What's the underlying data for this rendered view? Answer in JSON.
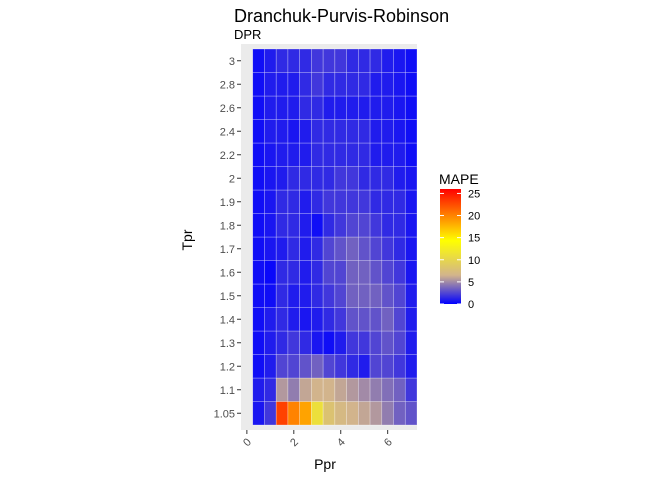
{
  "chart_data": {
    "type": "heatmap",
    "title": "Dranchuk-Purvis-Robinson",
    "subtitle": "DPR",
    "xlabel": "Ppr",
    "ylabel": "Tpr",
    "x_ticks": [
      "0",
      "2",
      "4",
      "6"
    ],
    "xlim": [
      -0.25,
      7.25
    ],
    "x_values": [
      0.5,
      1.0,
      1.5,
      2.0,
      2.5,
      3.0,
      3.5,
      4.0,
      4.5,
      5.0,
      5.5,
      6.0,
      6.5,
      7.0
    ],
    "y_categories": [
      "1.05",
      "1.1",
      "1.2",
      "1.3",
      "1.4",
      "1.5",
      "1.6",
      "1.7",
      "1.8",
      "1.9",
      "2",
      "2.2",
      "2.4",
      "2.6",
      "2.8",
      "3"
    ],
    "values": [
      [
        0.8,
        2.0,
        23.0,
        20.0,
        18.5,
        11.0,
        8.0,
        7.0,
        6.5,
        6.0,
        5.5,
        4.5,
        3.5,
        3.0
      ],
      [
        1.0,
        1.5,
        5.5,
        4.5,
        6.0,
        6.5,
        6.5,
        6.0,
        5.5,
        5.0,
        4.5,
        4.0,
        3.5,
        2.0
      ],
      [
        0.5,
        1.0,
        2.5,
        2.5,
        3.0,
        3.5,
        2.5,
        2.0,
        1.5,
        1.0,
        2.5,
        2.5,
        2.0,
        1.0
      ],
      [
        0.5,
        1.0,
        1.5,
        2.0,
        1.5,
        0.8,
        0.5,
        1.0,
        2.0,
        2.0,
        2.5,
        3.0,
        2.5,
        1.0
      ],
      [
        0.5,
        1.0,
        1.5,
        1.0,
        0.8,
        1.0,
        1.5,
        2.0,
        3.0,
        3.0,
        3.0,
        3.5,
        2.5,
        1.0
      ],
      [
        0.5,
        0.5,
        1.5,
        1.0,
        1.0,
        1.5,
        2.0,
        2.5,
        3.5,
        3.5,
        3.5,
        3.0,
        2.5,
        1.0
      ],
      [
        0.5,
        0.3,
        1.5,
        1.5,
        1.0,
        1.5,
        2.5,
        2.5,
        3.5,
        3.5,
        3.0,
        2.5,
        2.0,
        0.8
      ],
      [
        0.5,
        0.8,
        1.0,
        1.5,
        1.0,
        1.5,
        2.5,
        3.0,
        3.5,
        3.0,
        2.5,
        2.0,
        1.5,
        0.8
      ],
      [
        0.5,
        0.8,
        1.5,
        1.5,
        1.0,
        0.5,
        1.5,
        2.0,
        2.5,
        2.5,
        2.0,
        1.5,
        1.5,
        0.8
      ],
      [
        0.5,
        0.8,
        1.5,
        1.5,
        1.0,
        1.5,
        2.0,
        2.0,
        2.0,
        2.0,
        1.5,
        1.5,
        1.5,
        0.8
      ],
      [
        0.5,
        0.8,
        1.0,
        1.5,
        1.5,
        1.5,
        1.5,
        2.0,
        2.0,
        1.5,
        1.5,
        1.5,
        1.0,
        0.8
      ],
      [
        0.5,
        0.8,
        1.0,
        1.0,
        1.0,
        1.5,
        1.5,
        1.5,
        1.5,
        1.5,
        1.0,
        1.0,
        1.0,
        0.5
      ],
      [
        0.5,
        1.0,
        1.0,
        0.8,
        1.0,
        1.5,
        1.5,
        1.5,
        1.5,
        1.5,
        1.0,
        1.0,
        0.8,
        0.5
      ],
      [
        0.5,
        1.0,
        1.0,
        1.0,
        1.5,
        1.5,
        1.0,
        1.0,
        1.0,
        1.0,
        1.0,
        1.0,
        0.8,
        0.5
      ],
      [
        0.5,
        1.0,
        1.0,
        1.0,
        1.5,
        2.0,
        1.5,
        1.5,
        1.5,
        1.5,
        1.0,
        1.0,
        0.8,
        0.5
      ],
      [
        0.5,
        1.0,
        1.5,
        1.5,
        1.5,
        2.0,
        2.0,
        2.0,
        1.5,
        1.5,
        1.5,
        1.0,
        0.8,
        0.5
      ]
    ],
    "legend": {
      "title": "MAPE",
      "ticks": [
        0,
        5,
        10,
        15,
        20,
        25
      ],
      "range": [
        0,
        26
      ],
      "colors": [
        "#0000ff",
        "#d2b48c",
        "#ffff00",
        "#ff0000"
      ],
      "color_stops": [
        0,
        0.25,
        0.55,
        1.0
      ]
    },
    "grid": true,
    "legend_position": "right",
    "panel_background": "#ebebeb"
  }
}
